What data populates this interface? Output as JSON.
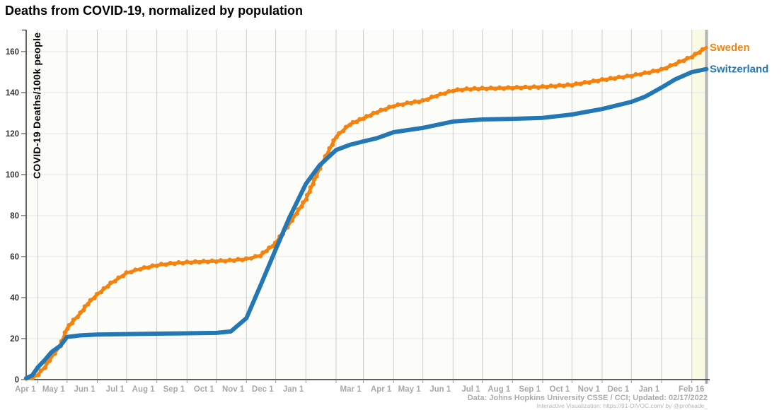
{
  "title": "Deaths from COVID-19, normalized by population",
  "footer": {
    "line1": "Data: Johns Hopkins University CSSE / CCI; Updated: 02/17/2022",
    "line2": "Interactive Visualization: https://91-DIVOC.com/ by @profwade_"
  },
  "chart_data": {
    "type": "line",
    "title": "Deaths from COVID-19, normalized by population",
    "xlabel": "",
    "ylabel": "COVID-19 Deaths/100k people",
    "ylim": [
      0,
      165
    ],
    "grid": true,
    "legend_position": "line-end-labels-right",
    "x_domain": [
      "2020-03-20",
      "2022-02-16"
    ],
    "y_ticks": [
      0,
      20,
      40,
      60,
      80,
      100,
      120,
      140,
      160
    ],
    "x_ticks": [
      [
        "2020-04-01",
        "Apr 1"
      ],
      [
        "2020-05-01",
        "May 1"
      ],
      [
        "2020-06-01",
        "Jun 1"
      ],
      [
        "2020-07-01",
        "Jul 1"
      ],
      [
        "2020-08-01",
        "Aug 1"
      ],
      [
        "2020-09-01",
        "Sep 1"
      ],
      [
        "2020-10-01",
        "Oct 1"
      ],
      [
        "2020-11-01",
        "Nov 1"
      ],
      [
        "2020-12-01",
        "Dec 1"
      ],
      [
        "2021-01-01",
        "Jan 1"
      ],
      [
        "2021-02-01",
        ""
      ],
      [
        "2021-03-01",
        "Mar 1"
      ],
      [
        "2021-04-01",
        "Apr 1"
      ],
      [
        "2021-05-01",
        "May 1"
      ],
      [
        "2021-06-01",
        "Jun 1"
      ],
      [
        "2021-07-01",
        "Jul 1"
      ],
      [
        "2021-08-01",
        "Aug 1"
      ],
      [
        "2021-09-01",
        "Sep 1"
      ],
      [
        "2021-10-01",
        "Oct 1"
      ],
      [
        "2021-11-01",
        "Nov 1"
      ],
      [
        "2021-12-01",
        "Dec 1"
      ],
      [
        "2022-01-01",
        "Jan 1"
      ],
      [
        "2022-02-01",
        ""
      ],
      [
        "2022-02-16",
        "Feb 16"
      ]
    ],
    "highlight_band": {
      "from": "2022-02-01",
      "to": "2022-02-16",
      "color": "#fafae4"
    },
    "current_date_bar": {
      "date": "2022-02-16",
      "color": "#b3b3b3"
    },
    "series": [
      {
        "name": "Sweden",
        "color": "#f5820d",
        "style": "beaded",
        "points": [
          [
            "2020-03-20",
            0.2
          ],
          [
            "2020-03-26",
            0.9
          ],
          [
            "2020-04-01",
            2.4
          ],
          [
            "2020-04-08",
            6
          ],
          [
            "2020-04-15",
            11
          ],
          [
            "2020-04-24",
            16.5
          ],
          [
            "2020-05-01",
            25
          ],
          [
            "2020-05-08",
            29
          ],
          [
            "2020-05-15",
            32.5
          ],
          [
            "2020-05-22",
            37
          ],
          [
            "2020-06-01",
            41.5
          ],
          [
            "2020-06-15",
            47
          ],
          [
            "2020-07-01",
            52
          ],
          [
            "2020-07-15",
            54
          ],
          [
            "2020-08-01",
            55.8
          ],
          [
            "2020-08-15",
            56.6
          ],
          [
            "2020-09-01",
            57.2
          ],
          [
            "2020-10-01",
            57.8
          ],
          [
            "2020-10-15",
            58.1
          ],
          [
            "2020-11-01",
            58.8
          ],
          [
            "2020-11-15",
            60.5
          ],
          [
            "2020-12-01",
            66.5
          ],
          [
            "2020-12-15",
            76
          ],
          [
            "2021-01-01",
            88
          ],
          [
            "2021-01-15",
            103
          ],
          [
            "2021-02-01",
            118.5
          ],
          [
            "2021-02-15",
            124.5
          ],
          [
            "2021-03-01",
            127.5
          ],
          [
            "2021-03-15",
            130.5
          ],
          [
            "2021-04-01",
            133.5
          ],
          [
            "2021-04-15",
            134.8
          ],
          [
            "2021-05-01",
            136
          ],
          [
            "2021-05-15",
            138.5
          ],
          [
            "2021-06-01",
            141
          ],
          [
            "2021-06-15",
            141.7
          ],
          [
            "2021-07-01",
            142
          ],
          [
            "2021-08-01",
            142.3
          ],
          [
            "2021-09-01",
            142.8
          ],
          [
            "2021-10-01",
            143.8
          ],
          [
            "2021-11-01",
            146.2
          ],
          [
            "2021-12-01",
            148.2
          ],
          [
            "2021-12-15",
            149.5
          ],
          [
            "2022-01-01",
            151.2
          ],
          [
            "2022-01-15",
            154
          ],
          [
            "2022-02-01",
            157.5
          ],
          [
            "2022-02-16",
            162
          ]
        ]
      },
      {
        "name": "Switzerland",
        "color": "#2277b4",
        "style": "smooth",
        "points": [
          [
            "2020-03-20",
            0.7
          ],
          [
            "2020-03-26",
            2
          ],
          [
            "2020-04-01",
            6
          ],
          [
            "2020-04-08",
            9.5
          ],
          [
            "2020-04-15",
            13.4
          ],
          [
            "2020-04-24",
            16.5
          ],
          [
            "2020-05-01",
            20.8
          ],
          [
            "2020-05-15",
            21.6
          ],
          [
            "2020-06-01",
            22
          ],
          [
            "2020-07-01",
            22.2
          ],
          [
            "2020-08-01",
            22.4
          ],
          [
            "2020-09-01",
            22.6
          ],
          [
            "2020-10-01",
            22.8
          ],
          [
            "2020-10-16",
            23.5
          ],
          [
            "2020-11-01",
            30
          ],
          [
            "2020-11-16",
            46.5
          ],
          [
            "2020-12-01",
            63.5
          ],
          [
            "2020-12-15",
            79
          ],
          [
            "2021-01-01",
            95.5
          ],
          [
            "2021-01-15",
            104.5
          ],
          [
            "2021-02-01",
            112
          ],
          [
            "2021-02-15",
            114.5
          ],
          [
            "2021-03-01",
            116.2
          ],
          [
            "2021-03-15",
            117.8
          ],
          [
            "2021-04-01",
            120.7
          ],
          [
            "2021-05-01",
            122.8
          ],
          [
            "2021-06-01",
            125.9
          ],
          [
            "2021-07-01",
            126.9
          ],
          [
            "2021-08-01",
            127.2
          ],
          [
            "2021-09-01",
            127.7
          ],
          [
            "2021-10-01",
            129.3
          ],
          [
            "2021-11-01",
            132
          ],
          [
            "2021-12-01",
            135.5
          ],
          [
            "2021-12-15",
            138
          ],
          [
            "2022-01-01",
            142.5
          ],
          [
            "2022-01-15",
            146.5
          ],
          [
            "2022-02-01",
            150
          ],
          [
            "2022-02-16",
            151.5
          ]
        ]
      }
    ]
  }
}
